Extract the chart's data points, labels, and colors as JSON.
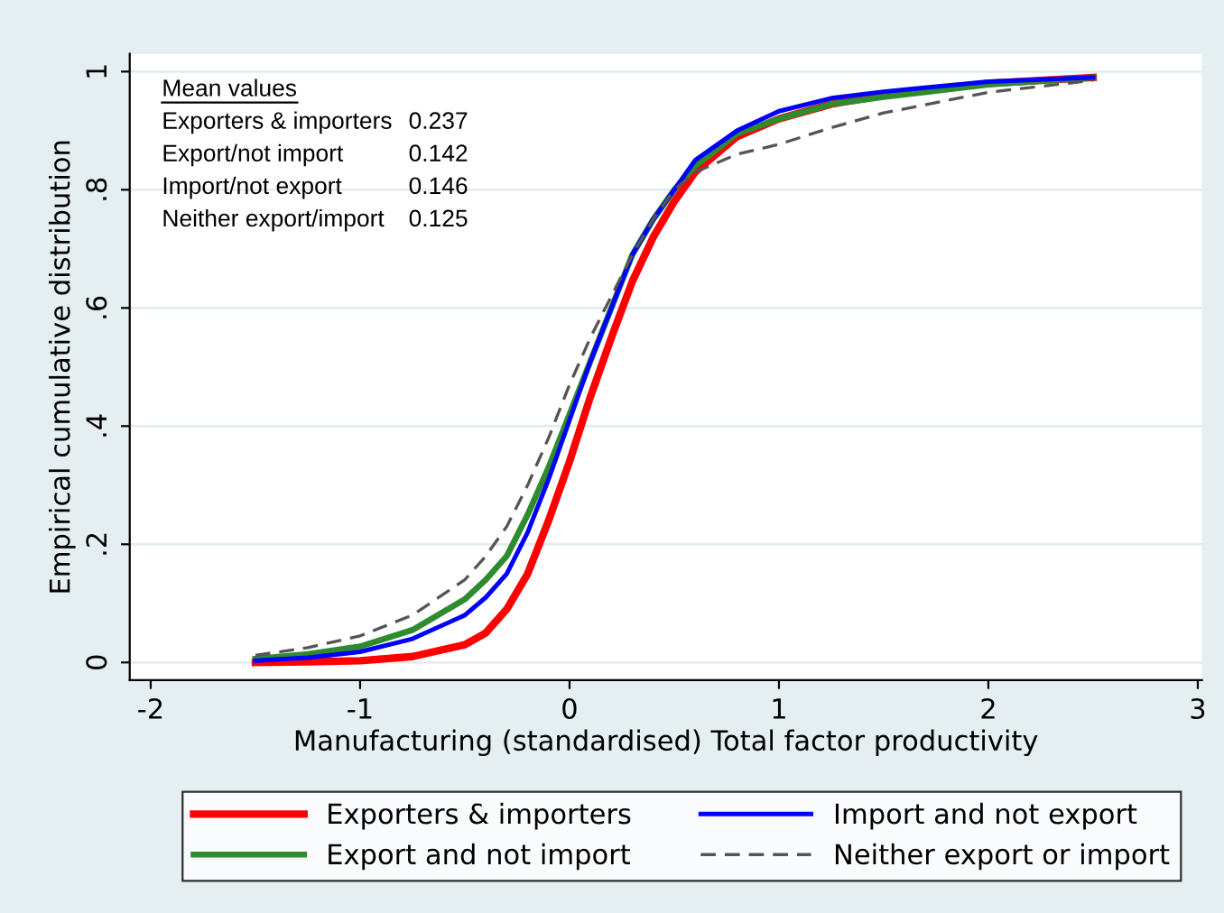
{
  "chart_data": {
    "type": "line",
    "xlabel": "Manufacturing (standardised) Total factor productivity",
    "ylabel": "Empirical cumulative distribution",
    "x": [
      -1.5,
      -1.25,
      -1,
      -0.75,
      -0.5,
      -0.4,
      -0.3,
      -0.2,
      -0.1,
      0,
      0.1,
      0.2,
      0.3,
      0.4,
      0.5,
      0.6,
      0.8,
      1.0,
      1.25,
      1.5,
      2.0,
      2.5
    ],
    "series": [
      {
        "name": "Exporters & importers",
        "color": "#ff0000",
        "line_style": "solid",
        "values": [
          0,
          0.001,
          0.003,
          0.01,
          0.03,
          0.05,
          0.09,
          0.15,
          0.24,
          0.34,
          0.45,
          0.55,
          0.645,
          0.72,
          0.78,
          0.83,
          0.89,
          0.92,
          0.945,
          0.96,
          0.98,
          0.99
        ]
      },
      {
        "name": "Export and not import",
        "color": "#2e8b2e",
        "line_style": "solid",
        "values": [
          0.006,
          0.014,
          0.027,
          0.055,
          0.107,
          0.14,
          0.18,
          0.25,
          0.33,
          0.42,
          0.51,
          0.6,
          0.69,
          0.75,
          0.8,
          0.84,
          0.895,
          0.92,
          0.945,
          0.957,
          0.978,
          0.99
        ]
      },
      {
        "name": "Import and not export",
        "color": "#0000ff",
        "line_style": "solid",
        "values": [
          0.003,
          0.008,
          0.018,
          0.04,
          0.08,
          0.11,
          0.15,
          0.22,
          0.31,
          0.41,
          0.51,
          0.6,
          0.69,
          0.75,
          0.8,
          0.85,
          0.9,
          0.933,
          0.955,
          0.966,
          0.983,
          0.99
        ]
      },
      {
        "name": "Neither export or import",
        "color": "#555555",
        "line_style": "dashed",
        "values": [
          0.012,
          0.025,
          0.045,
          0.08,
          0.14,
          0.18,
          0.23,
          0.3,
          0.38,
          0.47,
          0.55,
          0.62,
          0.69,
          0.75,
          0.8,
          0.83,
          0.86,
          0.877,
          0.905,
          0.93,
          0.965,
          0.985
        ]
      }
    ],
    "xlim": [
      -2.1,
      3.02
    ],
    "xticks": [
      -2,
      -1,
      0,
      1,
      2,
      3
    ],
    "ylim": [
      -0.03,
      1.03
    ],
    "yticks": [
      {
        "value": 0,
        "label": "0"
      },
      {
        "value": 0.2,
        "label": ".2"
      },
      {
        "value": 0.4,
        "label": ".4"
      },
      {
        "value": 0.6,
        "label": ".6"
      },
      {
        "value": 0.8,
        "label": ".8"
      },
      {
        "value": 1,
        "label": "1"
      }
    ],
    "grid": "y",
    "legend": "bottom",
    "marker": "none",
    "annotations": [
      "Mean values",
      "Exporters & importers",
      "0.237",
      "Export/not import",
      "0.142",
      "Import/not export",
      "0.146",
      "Neither export/import",
      "0.125"
    ]
  }
}
